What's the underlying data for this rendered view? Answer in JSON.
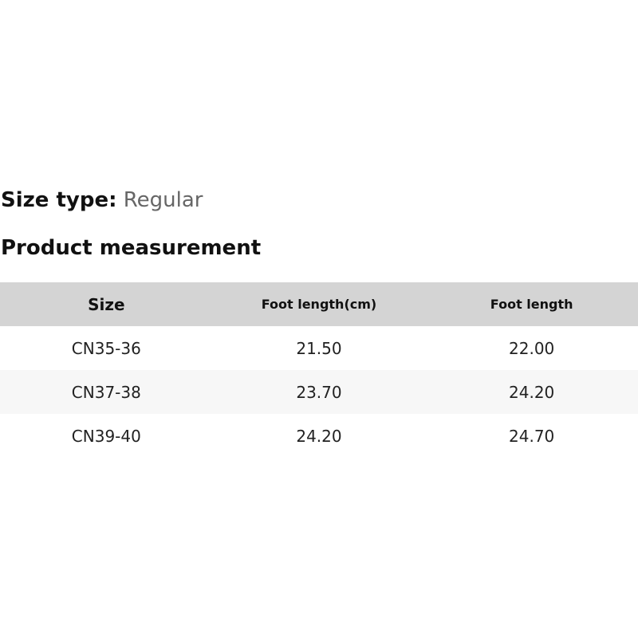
{
  "size_type": {
    "label": "Size type:",
    "value": "Regular"
  },
  "title": "Product measurement",
  "table": {
    "headers": [
      "Size",
      "Foot length(cm)",
      "Foot length"
    ],
    "rows": [
      [
        "CN35-36",
        "21.50",
        "22.00"
      ],
      [
        "CN37-38",
        "23.70",
        "24.20"
      ],
      [
        "CN39-40",
        "24.20",
        "24.70"
      ]
    ]
  }
}
